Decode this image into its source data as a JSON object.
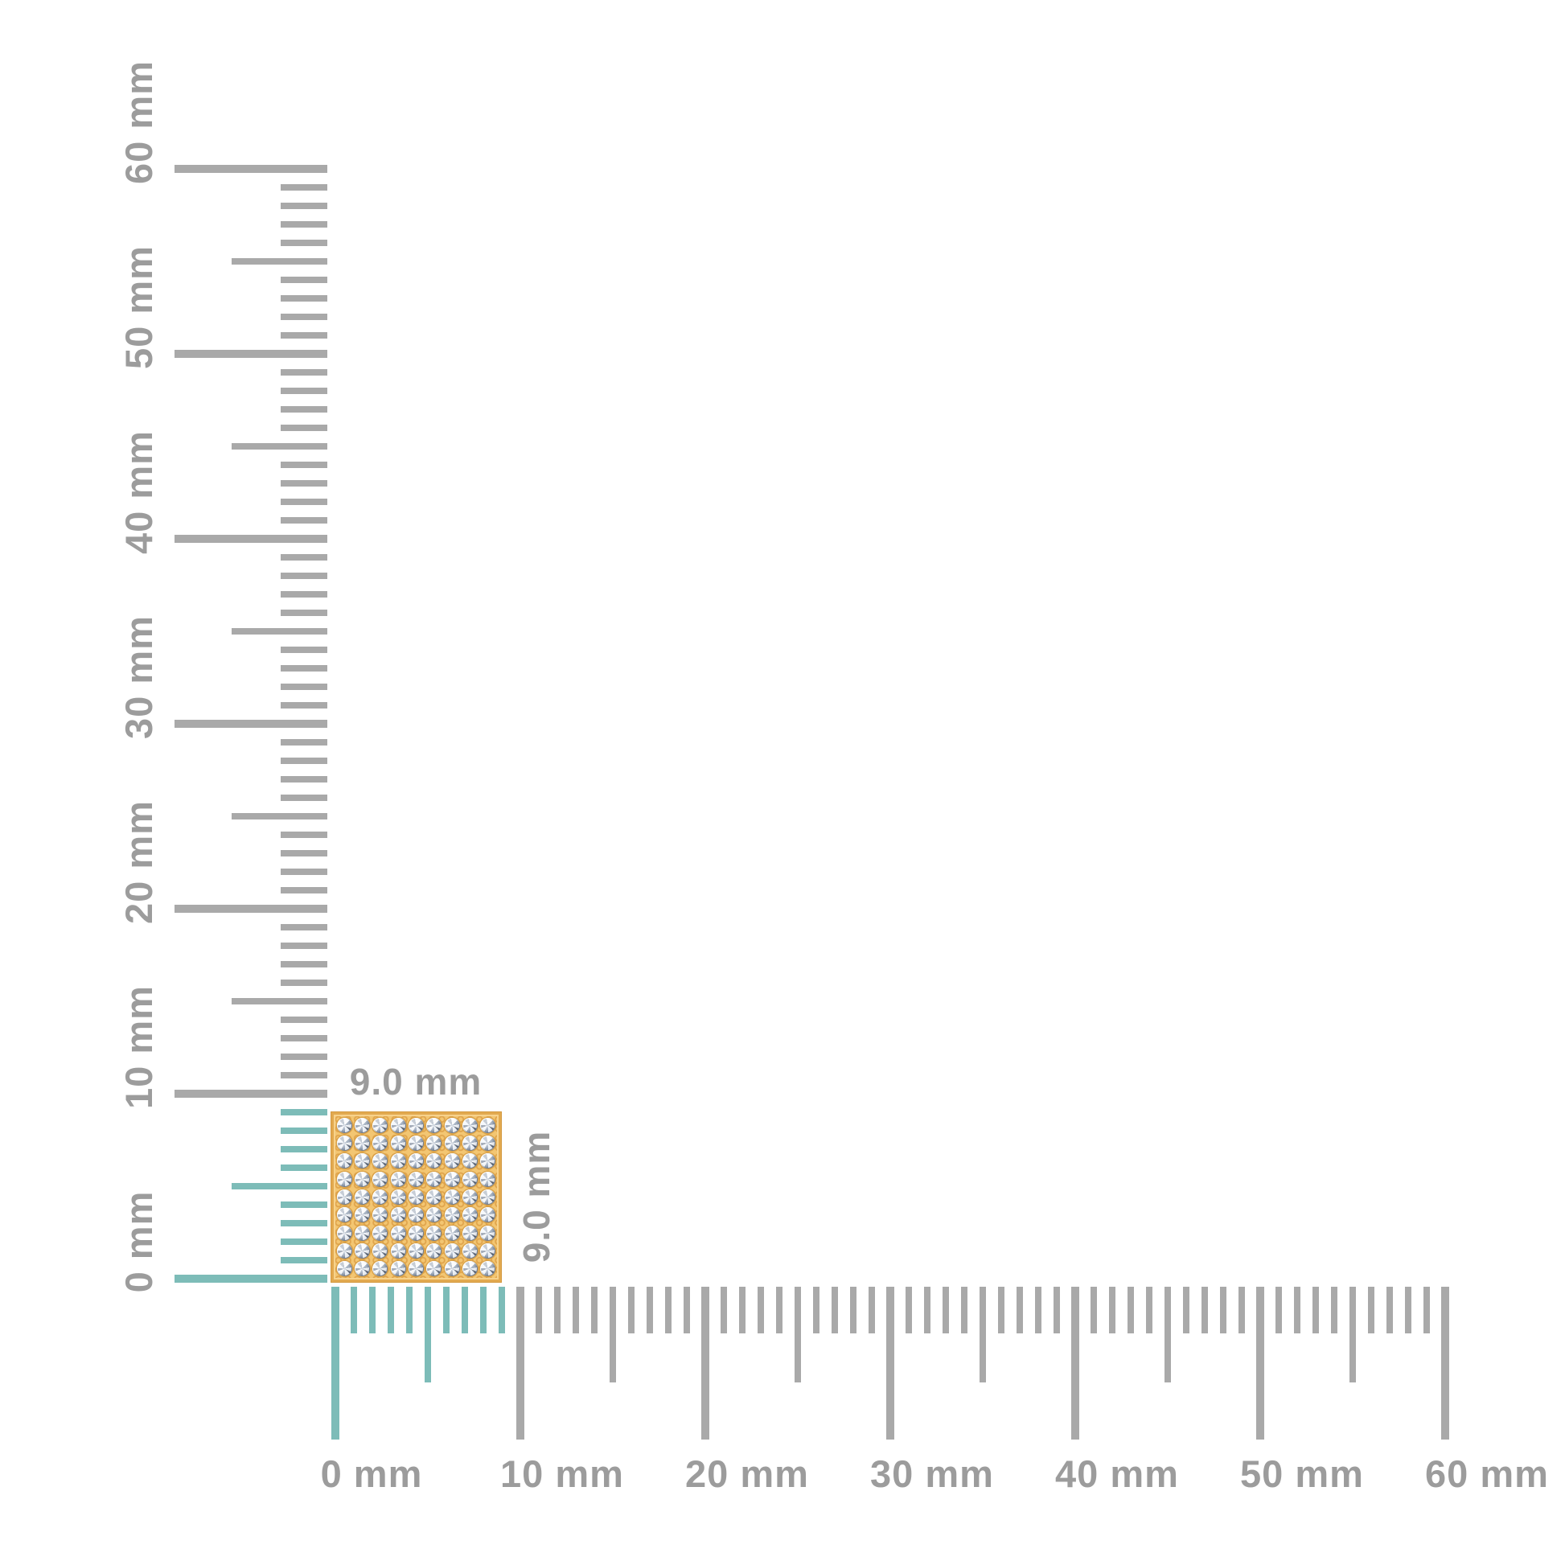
{
  "figure": {
    "kind": "jewelry-size-guide",
    "unit": "mm",
    "background": "#ffffff"
  },
  "colors": {
    "highlight_teal": "#7dbcb8",
    "tick_gray": "#a9a9a9",
    "label_gray": "#9c9c9c",
    "gold_base": "#f3c672",
    "gold_bead": "#e0a44c",
    "diamond_light": "#eef3f9",
    "diamond_mid": "#ccd7e4",
    "diamond_dark": "#8e99ab"
  },
  "vertical_ruler": {
    "orientation": "vertical",
    "range_mm": [
      0,
      60
    ],
    "minor_step_mm": 1,
    "medium_step_mm": 5,
    "major_step_mm": 10,
    "highlight_range_mm": [
      0,
      9
    ],
    "labels": [
      "0 mm",
      "10 mm",
      "20 mm",
      "30 mm",
      "40 mm",
      "50 mm",
      "60 mm"
    ]
  },
  "horizontal_ruler": {
    "orientation": "horizontal",
    "range_mm": [
      0,
      60
    ],
    "minor_step_mm": 1,
    "medium_step_mm": 5,
    "major_step_mm": 10,
    "highlight_range_mm": [
      0,
      9
    ],
    "labels": [
      "0 mm",
      "10 mm",
      "20 mm",
      "30 mm",
      "40 mm",
      "50 mm",
      "60 mm"
    ]
  },
  "item": {
    "shape": "square",
    "style": "yellow-gold-pave-set-round-diamonds",
    "width_mm": 9.0,
    "height_mm": 9.0,
    "width_label": "9.0 mm",
    "height_label": "9.0 mm",
    "stone_rows": 9,
    "stone_cols": 9
  }
}
